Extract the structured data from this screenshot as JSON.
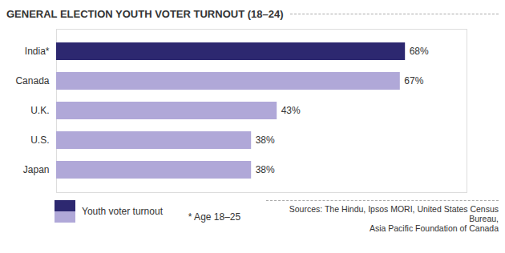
{
  "chart_data": {
    "type": "bar",
    "orientation": "horizontal",
    "title": "GENERAL ELECTION YOUTH VOTER TURNOUT (18–24)",
    "categories": [
      "India*",
      "Canada",
      "U.K.",
      "U.S.",
      "Japan"
    ],
    "series": [
      {
        "name": "Youth voter turnout",
        "values": [
          68,
          67,
          43,
          38,
          38
        ],
        "value_labels": [
          "68%",
          "67%",
          "43%",
          "38%",
          "38%"
        ],
        "colors": [
          "#2d2870",
          "#b0a8d8",
          "#b0a8d8",
          "#b0a8d8",
          "#b0a8d8"
        ]
      }
    ],
    "xlim": [
      0,
      80
    ],
    "data_labels": true,
    "tick_labels": "y",
    "grid": false,
    "legend": "bottom-left",
    "annotations": [
      "* Age 18–25",
      "Sources: The Hindu, Ipsos MORI, United States Census Bureau,",
      "Asia Pacific Foundation of Canada"
    ]
  }
}
